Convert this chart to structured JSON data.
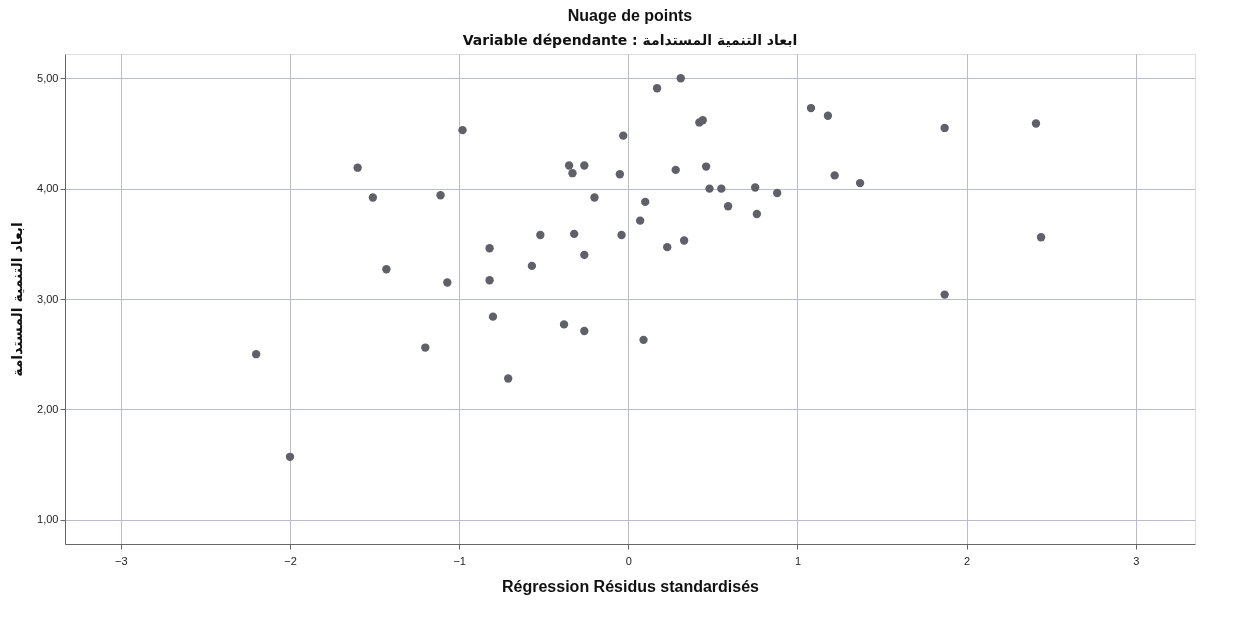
{
  "chart_data": {
    "type": "scatter",
    "title": "Nuage de points",
    "subtitle": "Variable dépendante : ابعاد التنمية المستدامة",
    "xlabel": "Régression Résidus standardisés",
    "ylabel": "ابعاد التنمية المستدامة",
    "xlim": [
      -3.33,
      3.35
    ],
    "ylim": [
      0.78,
      5.22
    ],
    "xticks": [
      -3,
      -2,
      -1,
      0,
      1,
      2,
      3
    ],
    "yticks": [
      {
        "value": 1,
        "label": "1,00"
      },
      {
        "value": 2,
        "label": "2,00"
      },
      {
        "value": 3,
        "label": "3,00"
      },
      {
        "value": 4,
        "label": "4,00"
      },
      {
        "value": 5,
        "label": "5,00"
      }
    ],
    "grid": true,
    "marker": "circle",
    "series": [
      {
        "color": "#5f6068",
        "x": [
          -1.6,
          -1.51,
          -1.11,
          -1.43,
          -1.07,
          -2.2,
          -1.2,
          -2.0,
          -0.98,
          0.31,
          0.17,
          0.42,
          0.44,
          1.08,
          1.18,
          -0.03,
          -0.35,
          -0.33,
          -0.26,
          -0.05,
          0.28,
          0.46,
          1.22,
          -0.2,
          0.48,
          0.55,
          0.75,
          0.88,
          0.1,
          0.59,
          0.76,
          0.07,
          -0.52,
          -0.32,
          -0.04,
          -0.82,
          0.23,
          0.33,
          -0.26,
          -0.57,
          -0.82,
          -0.8,
          -0.38,
          -0.26,
          0.09,
          -0.71,
          1.87,
          2.41,
          1.37,
          2.44,
          1.87
        ],
        "values": [
          4.19,
          3.92,
          3.94,
          3.27,
          3.15,
          2.5,
          2.56,
          1.57,
          4.53,
          5.0,
          4.91,
          4.6,
          4.62,
          4.73,
          4.66,
          4.48,
          4.21,
          4.14,
          4.21,
          4.13,
          4.17,
          4.2,
          4.12,
          3.92,
          4.0,
          4.0,
          4.01,
          3.96,
          3.88,
          3.84,
          3.77,
          3.71,
          3.58,
          3.59,
          3.58,
          3.46,
          3.47,
          3.53,
          3.4,
          3.3,
          3.17,
          2.84,
          2.77,
          2.71,
          2.63,
          2.28,
          4.55,
          4.59,
          4.05,
          3.56,
          3.04
        ]
      }
    ]
  }
}
